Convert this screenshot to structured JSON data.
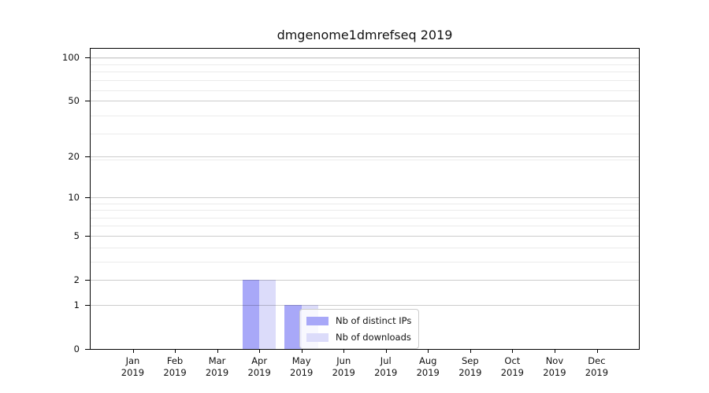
{
  "figure": {
    "title": "dmgenome1dmrefseq 2019"
  },
  "chart_data": {
    "type": "bar",
    "title": "dmgenome1dmrefseq 2019",
    "categories": [
      [
        "Jan",
        "2019"
      ],
      [
        "Feb",
        "2019"
      ],
      [
        "Mar",
        "2019"
      ],
      [
        "Apr",
        "2019"
      ],
      [
        "May",
        "2019"
      ],
      [
        "Jun",
        "2019"
      ],
      [
        "Jul",
        "2019"
      ],
      [
        "Aug",
        "2019"
      ],
      [
        "Sep",
        "2019"
      ],
      [
        "Oct",
        "2019"
      ],
      [
        "Nov",
        "2019"
      ],
      [
        "Dec",
        "2019"
      ]
    ],
    "series": [
      {
        "name": "Nb of distinct IPs",
        "color": "#a8a8f8",
        "values": [
          0,
          0,
          0,
          2,
          1,
          0,
          0,
          0,
          0,
          0,
          0,
          0
        ]
      },
      {
        "name": "Nb of downloads",
        "color": "#dcdcfa",
        "values": [
          0,
          0,
          0,
          2,
          1,
          0,
          0,
          0,
          0,
          0,
          0,
          0
        ]
      }
    ],
    "xlabel": "",
    "ylabel": "",
    "yscale": "log1p",
    "yticks": [
      0,
      1,
      2,
      5,
      10,
      20,
      50,
      100
    ],
    "ylim": [
      0,
      100
    ],
    "grid": true,
    "legend": {
      "position": "lower center",
      "labels": [
        "Nb of distinct IPs",
        "Nb of downloads"
      ]
    }
  },
  "colors": {
    "bar_distinct_ips": "#a8a8f8",
    "bar_downloads": "#dcdcfa",
    "grid_major": "rgba(0,0,0,0.20)",
    "grid_minor": "rgba(0,0,0,0.08)",
    "spine": "#000000",
    "legend_border": "#cccccc"
  }
}
